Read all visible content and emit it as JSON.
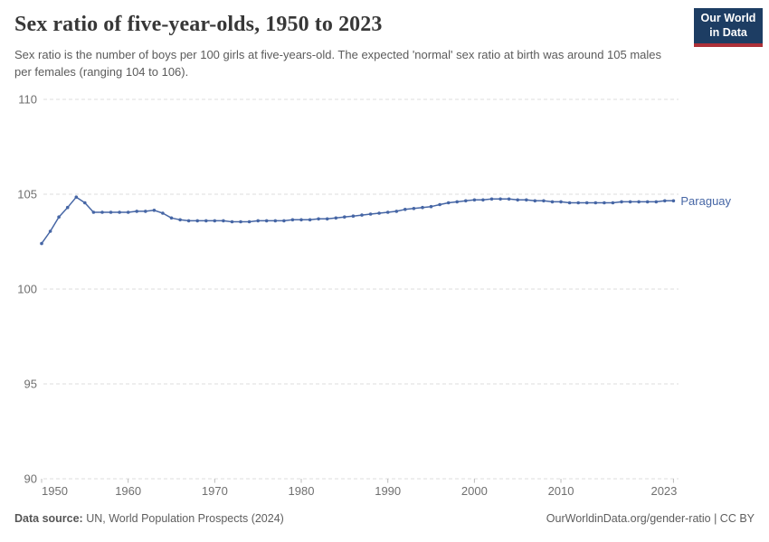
{
  "header": {
    "title": "Sex ratio of five-year-olds, 1950 to 2023",
    "subtitle": "Sex ratio is the number of boys per 100 girls at five-years-old. The expected 'normal' sex ratio at birth was around 105 males per females (ranging 104 to 106).",
    "logo": {
      "line1": "Our World",
      "line2": "in Data"
    }
  },
  "footer": {
    "source_label": "Data source:",
    "source_text": " UN, World Population Prospects (2024)",
    "credit": "OurWorldinData.org/gender-ratio | CC BY"
  },
  "colors": {
    "line": "#4666a5",
    "entity_label": "#4666a5",
    "gridline": "#dedede",
    "tick": "#bbbbbb",
    "axis_label": "#6f6f6f",
    "logo_bg": "#1d3d63",
    "logo_red": "#ad3038"
  },
  "chart_data": {
    "type": "line",
    "title": "Sex ratio of five-year-olds, 1950 to 2023",
    "entity": "Paraguay",
    "ylim": [
      90,
      110
    ],
    "y_ticks": [
      110,
      105,
      100,
      95,
      90
    ],
    "x_ticks": [
      1950,
      1960,
      1970,
      1980,
      1990,
      2000,
      2010,
      2023
    ],
    "grid": true,
    "legend_position": "end-of-line",
    "x": [
      1950,
      1951,
      1952,
      1953,
      1954,
      1955,
      1956,
      1957,
      1958,
      1959,
      1960,
      1961,
      1962,
      1963,
      1964,
      1965,
      1966,
      1967,
      1968,
      1969,
      1970,
      1971,
      1972,
      1973,
      1974,
      1975,
      1976,
      1977,
      1978,
      1979,
      1980,
      1981,
      1982,
      1983,
      1984,
      1985,
      1986,
      1987,
      1988,
      1989,
      1990,
      1991,
      1992,
      1993,
      1994,
      1995,
      1996,
      1997,
      1998,
      1999,
      2000,
      2001,
      2002,
      2003,
      2004,
      2005,
      2006,
      2007,
      2008,
      2009,
      2010,
      2011,
      2012,
      2013,
      2014,
      2015,
      2016,
      2017,
      2018,
      2019,
      2020,
      2021,
      2022,
      2023
    ],
    "series": [
      {
        "name": "Paraguay",
        "values": [
          102.4,
          103.05,
          103.8,
          104.3,
          104.85,
          104.55,
          104.05,
          104.05,
          104.05,
          104.05,
          104.05,
          104.1,
          104.1,
          104.15,
          104.0,
          103.75,
          103.65,
          103.6,
          103.6,
          103.6,
          103.6,
          103.6,
          103.55,
          103.55,
          103.55,
          103.6,
          103.6,
          103.6,
          103.6,
          103.65,
          103.65,
          103.65,
          103.7,
          103.7,
          103.75,
          103.8,
          103.85,
          103.9,
          103.95,
          104.0,
          104.05,
          104.1,
          104.2,
          104.25,
          104.3,
          104.35,
          104.45,
          104.55,
          104.6,
          104.65,
          104.7,
          104.7,
          104.75,
          104.75,
          104.75,
          104.7,
          104.7,
          104.65,
          104.65,
          104.6,
          104.6,
          104.55,
          104.55,
          104.55,
          104.55,
          104.55,
          104.55,
          104.6,
          104.6,
          104.6,
          104.6,
          104.6,
          104.65,
          104.65
        ]
      }
    ]
  }
}
